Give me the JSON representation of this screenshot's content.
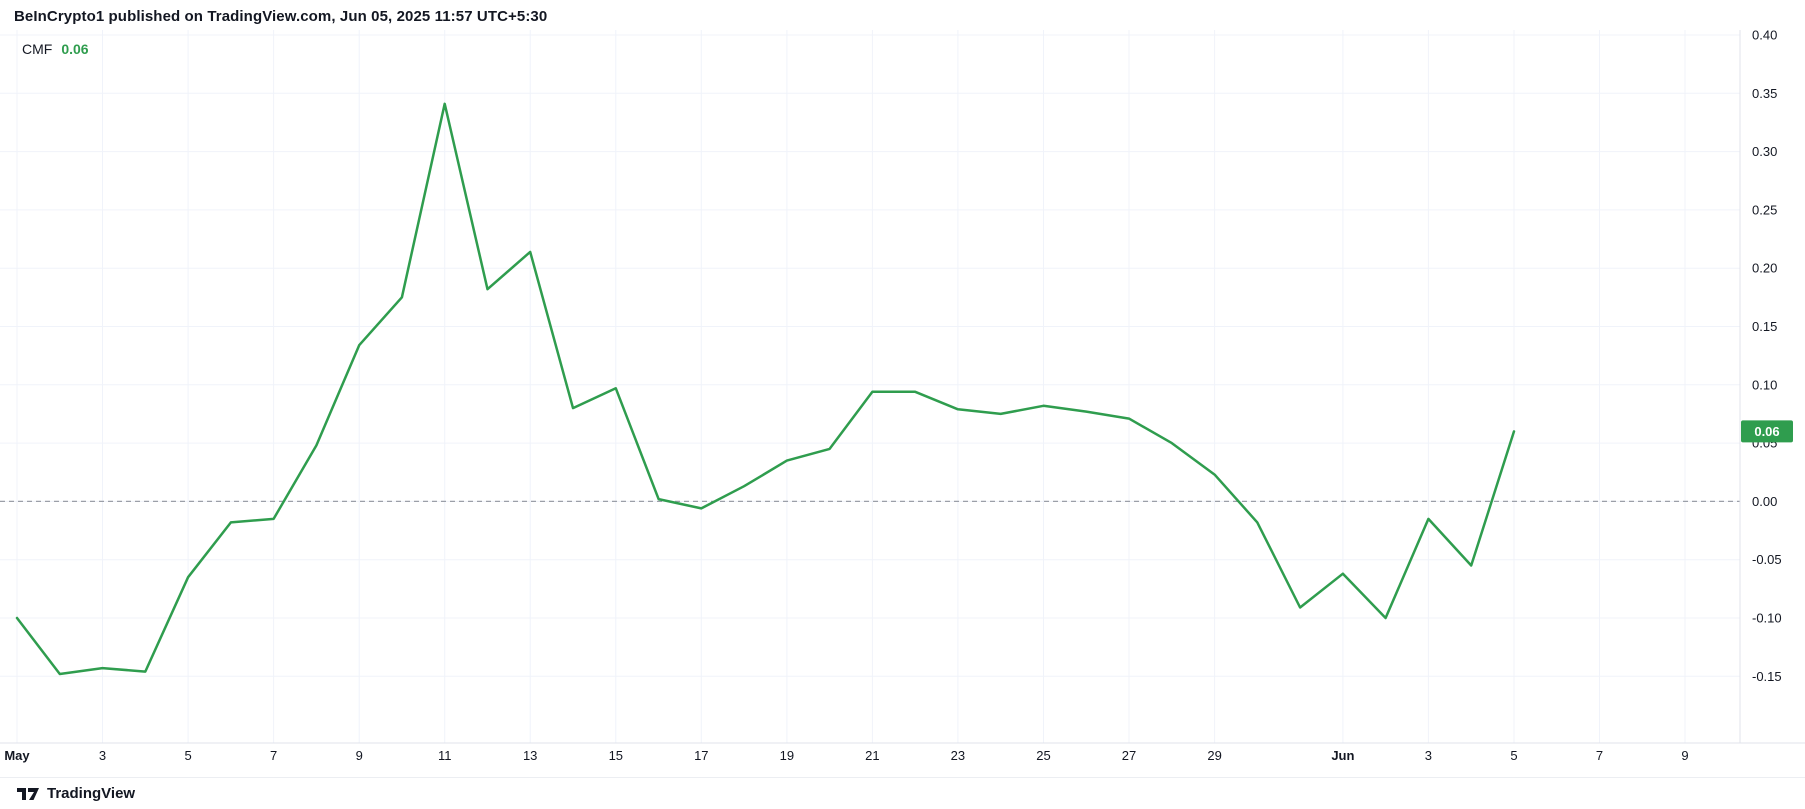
{
  "header": {
    "attribution": "BeInCrypto1 published on TradingView.com, Jun 05, 2025 11:57 UTC+5:30"
  },
  "legend": {
    "indicator": "CMF",
    "value": "0.06"
  },
  "price_scale": {
    "badge": {
      "value": "0.06"
    }
  },
  "footer": {
    "brand": "TradingView"
  },
  "colors": {
    "accent_green": "#2f9d4e",
    "badge_text": "#ffffff",
    "grid": "#f0f3fa",
    "zero_line": "#9b9fa8",
    "axis_text": "#131722",
    "border": "#e0e3eb",
    "background": "#ffffff"
  },
  "chart_data": {
    "type": "line",
    "title": "CMF",
    "legend_position": "top-left",
    "grid": true,
    "x_unit": "day index, May 1 2025 = 1",
    "x": [
      1,
      2,
      3,
      4,
      5,
      6,
      7,
      8,
      9,
      10,
      11,
      12,
      13,
      14,
      15,
      16,
      17,
      18,
      19,
      20,
      21,
      22,
      23,
      24,
      25,
      26,
      27,
      28,
      29,
      30,
      31,
      32,
      33,
      34,
      35,
      36
    ],
    "series": [
      {
        "name": "CMF",
        "color": "#2f9d4e",
        "values": [
          -0.1,
          -0.148,
          -0.143,
          -0.146,
          -0.065,
          -0.018,
          -0.015,
          0.048,
          0.134,
          0.175,
          0.341,
          0.182,
          0.214,
          0.08,
          0.097,
          0.002,
          -0.006,
          0.013,
          0.035,
          0.045,
          0.094,
          0.094,
          0.079,
          0.075,
          0.082,
          0.077,
          0.071,
          0.05,
          0.023,
          -0.018,
          -0.091,
          -0.062,
          -0.1,
          -0.015,
          -0.055,
          0.06
        ]
      }
    ],
    "current_value": 0.06,
    "zero_line": {
      "value": 0,
      "style": "dashed"
    },
    "y_axis": {
      "ticks": [
        0.4,
        0.35,
        0.3,
        0.25,
        0.2,
        0.15,
        0.1,
        0.05,
        0.0,
        -0.05,
        -0.1,
        -0.15
      ],
      "range_shown": [
        -0.205,
        0.405
      ]
    },
    "x_axis": {
      "ticks": [
        {
          "day": 1,
          "label": "May",
          "month": true
        },
        {
          "day": 3,
          "label": "3"
        },
        {
          "day": 5,
          "label": "5"
        },
        {
          "day": 7,
          "label": "7"
        },
        {
          "day": 9,
          "label": "9"
        },
        {
          "day": 11,
          "label": "11"
        },
        {
          "day": 13,
          "label": "13"
        },
        {
          "day": 15,
          "label": "15"
        },
        {
          "day": 17,
          "label": "17"
        },
        {
          "day": 19,
          "label": "19"
        },
        {
          "day": 21,
          "label": "21"
        },
        {
          "day": 23,
          "label": "23"
        },
        {
          "day": 25,
          "label": "25"
        },
        {
          "day": 27,
          "label": "27"
        },
        {
          "day": 29,
          "label": "29"
        },
        {
          "day": 32,
          "label": "Jun",
          "month": true
        },
        {
          "day": 34,
          "label": "3"
        },
        {
          "day": 36,
          "label": "5"
        },
        {
          "day": 38,
          "label": "7"
        },
        {
          "day": 40,
          "label": "9"
        }
      ]
    }
  }
}
